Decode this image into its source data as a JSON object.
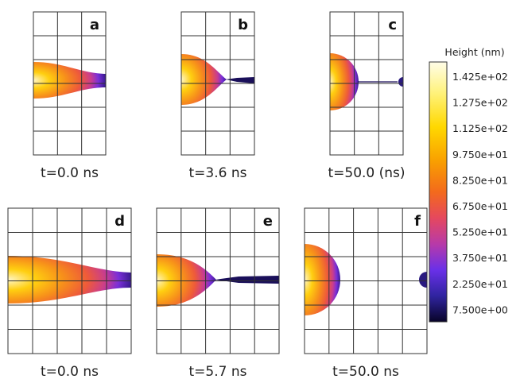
{
  "panels": [
    {
      "label": "a",
      "caption": "t=0.0 ns"
    },
    {
      "label": "b",
      "caption": "t=3.6 ns"
    },
    {
      "label": "c",
      "caption": "t=50.0 (ns)"
    },
    {
      "label": "d",
      "caption": "t=0.0 ns"
    },
    {
      "label": "e",
      "caption": "t=5.7 ns"
    },
    {
      "label": "f",
      "caption": "t=50.0 ns"
    }
  ],
  "colorbar": {
    "title": "Height (nm)",
    "labels": [
      "1.425e+02",
      "1.275e+02",
      "1.125e+02",
      "9.750e+01",
      "8.250e+01",
      "6.750e+01",
      "5.250e+01",
      "3.750e+01",
      "2.250e+01",
      "7.500e+00"
    ]
  }
}
